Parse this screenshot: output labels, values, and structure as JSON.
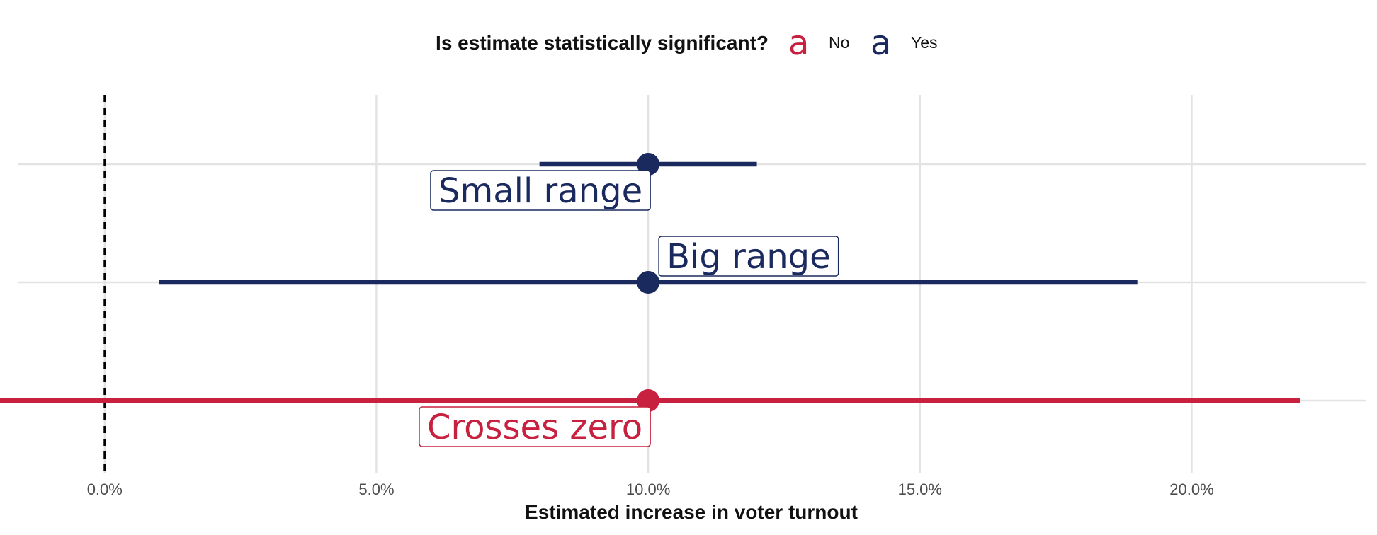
{
  "chart_data": {
    "type": "scatter",
    "subtype": "point-range",
    "title": "",
    "xlabel": "Estimated increase in voter turnout",
    "ylabel": "",
    "xlim": [
      -0.016,
      0.232
    ],
    "x_ticks": [
      0.0,
      0.05,
      0.1,
      0.15,
      0.2
    ],
    "x_tick_labels": [
      "0.0%",
      "5.0%",
      "10.0%",
      "15.0%",
      "20.0%"
    ],
    "reference_line": {
      "x": 0.0,
      "style": "dashed"
    },
    "grid": true,
    "legend": {
      "position": "top",
      "title": "Is estimate statistically significant?",
      "key_glyph": "a",
      "entries": [
        {
          "label": "No",
          "color": "#c8203f"
        },
        {
          "label": "Yes",
          "color": "#1b2a5e"
        }
      ]
    },
    "series": [
      {
        "name": "Small range",
        "estimate": 0.1,
        "low": 0.08,
        "high": 0.12,
        "significant": "Yes",
        "color": "#1b2a5e",
        "label_side": "below"
      },
      {
        "name": "Big range",
        "estimate": 0.1,
        "low": 0.01,
        "high": 0.19,
        "significant": "Yes",
        "color": "#1b2a5e",
        "label_side": "above"
      },
      {
        "name": "Crosses zero",
        "estimate": 0.1,
        "low": -0.02,
        "high": 0.22,
        "significant": "No",
        "color": "#c8203f",
        "label_side": "below"
      }
    ]
  }
}
